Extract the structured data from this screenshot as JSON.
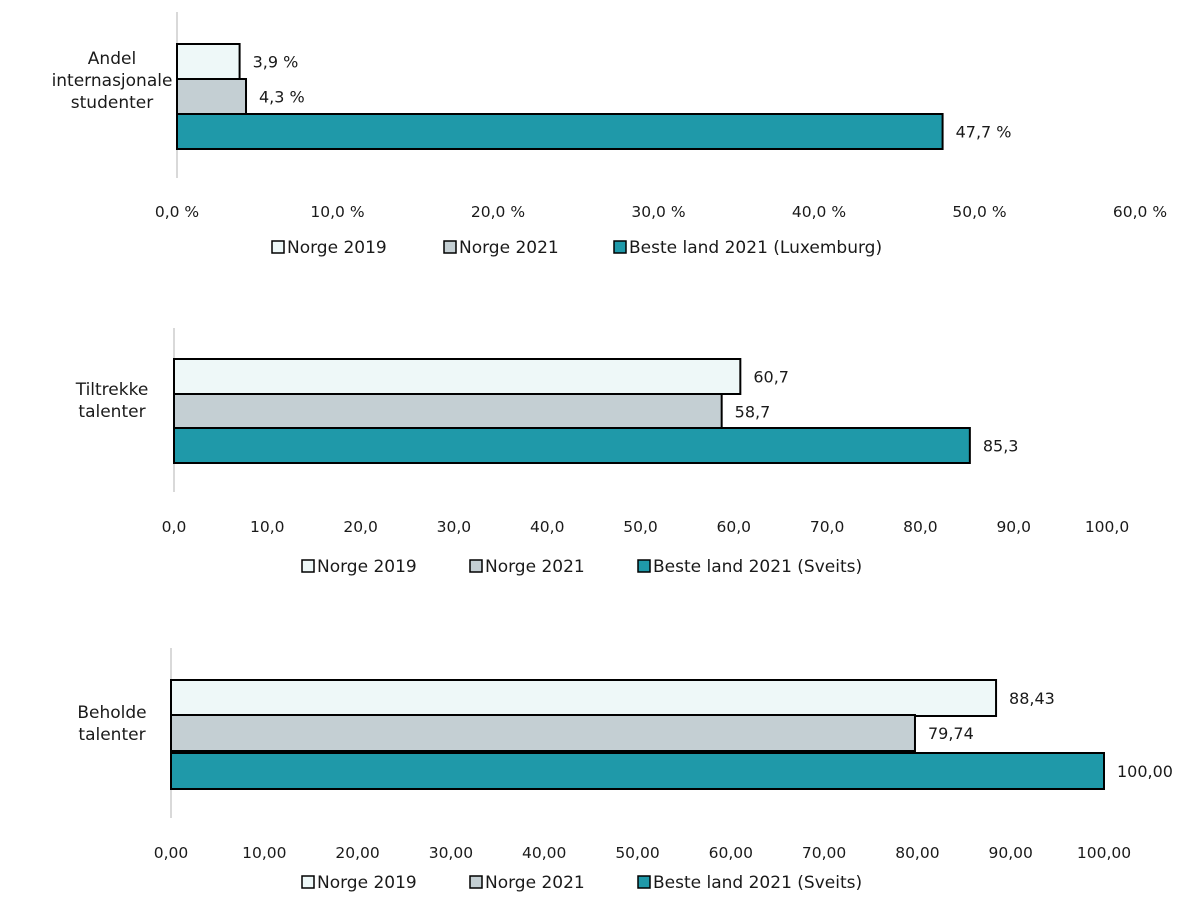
{
  "chart_data": [
    {
      "type": "bar",
      "orientation": "horizontal",
      "category": [
        "Andel",
        "internasjonale",
        "studenter"
      ],
      "series": [
        {
          "name": "Norge 2019",
          "color": "#eef8f8",
          "value": 3.9,
          "label": "3,9 %"
        },
        {
          "name": "Norge 2021",
          "color": "#c4cfd3",
          "value": 4.3,
          "label": "4,3 %"
        },
        {
          "name": "Beste land 2021 (Luxemburg)",
          "color": "#1f99a9",
          "value": 47.7,
          "label": "47,7 %"
        }
      ],
      "xlim": [
        0,
        60
      ],
      "ticks": [
        0,
        10,
        20,
        30,
        40,
        50,
        60
      ],
      "tick_labels": [
        "0,0 %",
        "10,0 %",
        "20,0 %",
        "30,0 %",
        "40,0 %",
        "50,0 %",
        "60,0 %"
      ],
      "legend_position": "bottom",
      "grid": false
    },
    {
      "type": "bar",
      "orientation": "horizontal",
      "category": [
        "Tiltrekke",
        "talenter"
      ],
      "series": [
        {
          "name": "Norge 2019",
          "color": "#eef8f8",
          "value": 60.7,
          "label": "60,7"
        },
        {
          "name": "Norge 2021",
          "color": "#c4cfd3",
          "value": 58.7,
          "label": "58,7"
        },
        {
          "name": "Beste land 2021 (Sveits)",
          "color": "#1f99a9",
          "value": 85.3,
          "label": "85,3"
        }
      ],
      "xlim": [
        0,
        100
      ],
      "ticks": [
        0,
        10,
        20,
        30,
        40,
        50,
        60,
        70,
        80,
        90,
        100
      ],
      "tick_labels": [
        "0,0",
        "10,0",
        "20,0",
        "30,0",
        "40,0",
        "50,0",
        "60,0",
        "70,0",
        "80,0",
        "90,0",
        "100,0"
      ],
      "legend_position": "bottom",
      "grid": false
    },
    {
      "type": "bar",
      "orientation": "horizontal",
      "category": [
        "Beholde",
        "talenter"
      ],
      "series": [
        {
          "name": "Norge 2019",
          "color": "#eef8f8",
          "value": 88.43,
          "label": "88,43"
        },
        {
          "name": "Norge 2021",
          "color": "#c4cfd3",
          "value": 79.74,
          "label": "79,74"
        },
        {
          "name": "Beste land 2021 (Sveits)",
          "color": "#1f99a9",
          "value": 100.0,
          "label": "100,00"
        }
      ],
      "xlim": [
        0,
        100
      ],
      "ticks": [
        0,
        10,
        20,
        30,
        40,
        50,
        60,
        70,
        80,
        90,
        100
      ],
      "tick_labels": [
        "0,00",
        "10,00",
        "20,00",
        "30,00",
        "40,00",
        "50,00",
        "60,00",
        "70,00",
        "80,00",
        "90,00",
        "100,00"
      ],
      "legend_position": "bottom",
      "grid": false
    }
  ]
}
